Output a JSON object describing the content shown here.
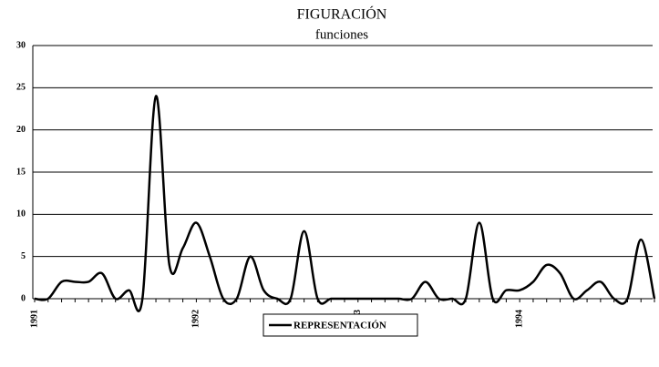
{
  "chart_data": {
    "type": "line",
    "title": "FIGURACIÓN",
    "subtitle": "funciones",
    "categories": [
      "1991",
      null,
      null,
      null,
      null,
      null,
      null,
      null,
      null,
      null,
      null,
      null,
      "1992",
      null,
      null,
      null,
      null,
      null,
      null,
      null,
      null,
      null,
      null,
      null,
      "1993",
      null,
      null,
      null,
      null,
      null,
      null,
      null,
      null,
      null,
      null,
      null,
      "1994",
      null,
      null,
      null,
      null,
      null,
      null,
      null,
      null,
      null,
      null
    ],
    "series": [
      {
        "name": "REPRESENTACIÓN",
        "color": "#000000",
        "values": [
          0,
          0,
          2,
          2,
          2,
          3,
          0,
          1,
          0,
          24,
          4,
          6,
          9,
          5,
          0,
          0,
          5,
          1,
          0,
          0,
          8,
          0,
          0,
          0,
          0,
          0,
          0,
          0,
          0,
          2,
          0,
          0,
          0,
          9,
          0,
          1,
          1,
          2,
          4,
          3,
          0,
          1,
          2,
          0,
          0,
          7,
          0
        ]
      }
    ],
    "ylim": [
      0,
      30
    ],
    "yticks": [
      0,
      5,
      10,
      15,
      20,
      25,
      30
    ],
    "grid": true,
    "legend": "bottom"
  }
}
